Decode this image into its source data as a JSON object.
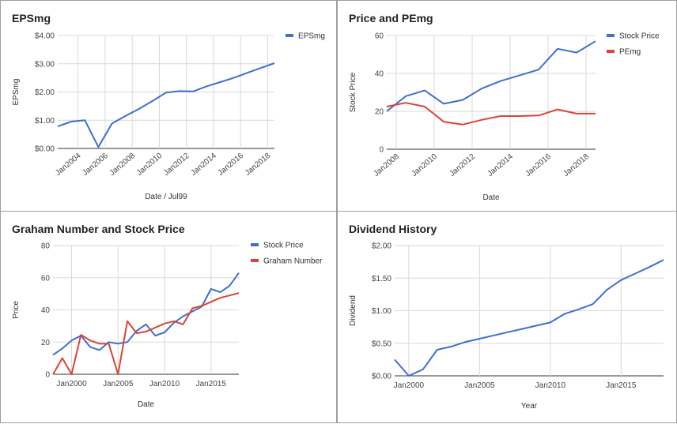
{
  "chart_data": [
    {
      "type": "line",
      "title": "EPSmg",
      "xlabel": "Date / Jul99",
      "ylabel": "EPSmg",
      "xlim": [
        2002.5,
        2018.5
      ],
      "ylim": [
        0,
        4
      ],
      "y_ticks": [
        0,
        1,
        2,
        3,
        4
      ],
      "y_tick_labels": [
        "$0.00",
        "$1.00",
        "$2.00",
        "$3.00",
        "$4.00"
      ],
      "x_ticks": [
        2004,
        2006,
        2008,
        2010,
        2012,
        2014,
        2016,
        2018
      ],
      "x_tick_labels": [
        "Jan2004",
        "Jan2006",
        "Jan2008",
        "Jan2010",
        "Jan2012",
        "Jan2014",
        "Jan2016",
        "Jan2018"
      ],
      "x_label_rotate": true,
      "legend_position": "right",
      "series": [
        {
          "name": "EPSmg",
          "color": "#3f6fcf",
          "x": [
            2002.5,
            2003.5,
            2004.5,
            2005.5,
            2006.5,
            2007.5,
            2008.5,
            2009.5,
            2010.5,
            2011.5,
            2012.5,
            2013.5,
            2014.5,
            2015.5,
            2016.5,
            2017.5,
            2018.5
          ],
          "y": [
            0.78,
            0.95,
            1.0,
            0.05,
            0.88,
            1.15,
            1.4,
            1.68,
            1.98,
            2.03,
            2.02,
            2.2,
            2.35,
            2.5,
            2.68,
            2.85,
            3.02
          ]
        }
      ]
    },
    {
      "type": "line",
      "title": "Price and PEmg",
      "xlabel": "Date",
      "ylabel": "Stock Price",
      "xlim": [
        2007.5,
        2018.5
      ],
      "ylim": [
        0,
        60
      ],
      "y_ticks": [
        0,
        20,
        40,
        60
      ],
      "y_tick_labels": [
        "0",
        "20",
        "40",
        "60"
      ],
      "x_ticks": [
        2008,
        2010,
        2012,
        2014,
        2016,
        2018
      ],
      "x_tick_labels": [
        "Jan2008",
        "Jan2010",
        "Jan2012",
        "Jan2014",
        "Jan2016",
        "Jan2018"
      ],
      "x_label_rotate": true,
      "legend_position": "right",
      "series": [
        {
          "name": "Stock Price",
          "color": "#3f6fcf",
          "x": [
            2007.5,
            2008.5,
            2009.5,
            2010.5,
            2011.5,
            2012.5,
            2013.5,
            2014.5,
            2015.5,
            2016.5,
            2017.5,
            2018.5
          ],
          "y": [
            20,
            28,
            31,
            24,
            26,
            32,
            36,
            39,
            42,
            53,
            51,
            57
          ]
        },
        {
          "name": "PEmg",
          "color": "#db4437",
          "x": [
            2007.5,
            2008.5,
            2009.5,
            2010.5,
            2011.5,
            2012.5,
            2013.5,
            2014.5,
            2015.5,
            2016.5,
            2017.5,
            2018.5
          ],
          "y": [
            22.5,
            24.5,
            22.5,
            14.5,
            13,
            15.5,
            17.5,
            17.5,
            17.8,
            21,
            18.8,
            18.8
          ]
        }
      ]
    },
    {
      "type": "line",
      "title": "Graham Number and Stock Price",
      "xlabel": "Date",
      "ylabel": "Price",
      "xlim": [
        1998,
        2018
      ],
      "ylim": [
        0,
        80
      ],
      "y_ticks": [
        0,
        20,
        40,
        60,
        80
      ],
      "y_tick_labels": [
        "0",
        "20",
        "40",
        "60",
        "80"
      ],
      "x_ticks": [
        2000,
        2005,
        2010,
        2015
      ],
      "x_tick_labels": [
        "Jan2000",
        "Jan2005",
        "Jan2010",
        "Jan2015"
      ],
      "x_label_rotate": false,
      "legend_position": "right",
      "series": [
        {
          "name": "Stock Price",
          "color": "#3f6fcf",
          "x": [
            1998,
            1999,
            2000,
            2001,
            2002,
            2003,
            2004,
            2005,
            2006,
            2007,
            2008,
            2009,
            2010,
            2011,
            2012,
            2013,
            2014,
            2015,
            2016,
            2017,
            2018
          ],
          "y": [
            12,
            16,
            21,
            24,
            17,
            15,
            20,
            19,
            20,
            27,
            31,
            24,
            26,
            32,
            36,
            39,
            42,
            53,
            51,
            55,
            63
          ]
        },
        {
          "name": "Graham Number",
          "color": "#db4437",
          "x": [
            1998,
            1999,
            2000,
            2001,
            2002,
            2003,
            2004,
            2005,
            2006,
            2007,
            2008,
            2009,
            2010,
            2011,
            2012,
            2013,
            2014,
            2015,
            2016,
            2017,
            2018
          ],
          "y": [
            0,
            10,
            0,
            24.5,
            21,
            19,
            19,
            0,
            33,
            25.5,
            26.5,
            29,
            31.5,
            33,
            31,
            41,
            42.5,
            45,
            47.5,
            49,
            50.5
          ]
        }
      ]
    },
    {
      "type": "line",
      "title": "Dividend History",
      "xlabel": "Year",
      "ylabel": "Dividend",
      "xlim": [
        1999,
        2018
      ],
      "ylim": [
        0,
        2
      ],
      "y_ticks": [
        0,
        0.5,
        1,
        1.5,
        2
      ],
      "y_tick_labels": [
        "$0.00",
        "$0.50",
        "$1.00",
        "$1.50",
        "$2.00"
      ],
      "x_ticks": [
        2000,
        2005,
        2010,
        2015
      ],
      "x_tick_labels": [
        "Jan2000",
        "Jan2005",
        "Jan2010",
        "Jan2015"
      ],
      "x_label_rotate": false,
      "legend_position": "none",
      "series": [
        {
          "name": "",
          "color": "#3f6fcf",
          "x": [
            1999,
            2000,
            2001,
            2002,
            2003,
            2004,
            2005,
            2006,
            2007,
            2008,
            2009,
            2010,
            2011,
            2012,
            2013,
            2014,
            2015,
            2016,
            2017,
            2018
          ],
          "y": [
            0.25,
            0.0,
            0.1,
            0.4,
            0.45,
            0.52,
            0.57,
            0.62,
            0.67,
            0.72,
            0.77,
            0.82,
            0.95,
            1.02,
            1.1,
            1.32,
            1.47,
            1.57,
            1.67,
            1.78
          ]
        }
      ]
    }
  ]
}
